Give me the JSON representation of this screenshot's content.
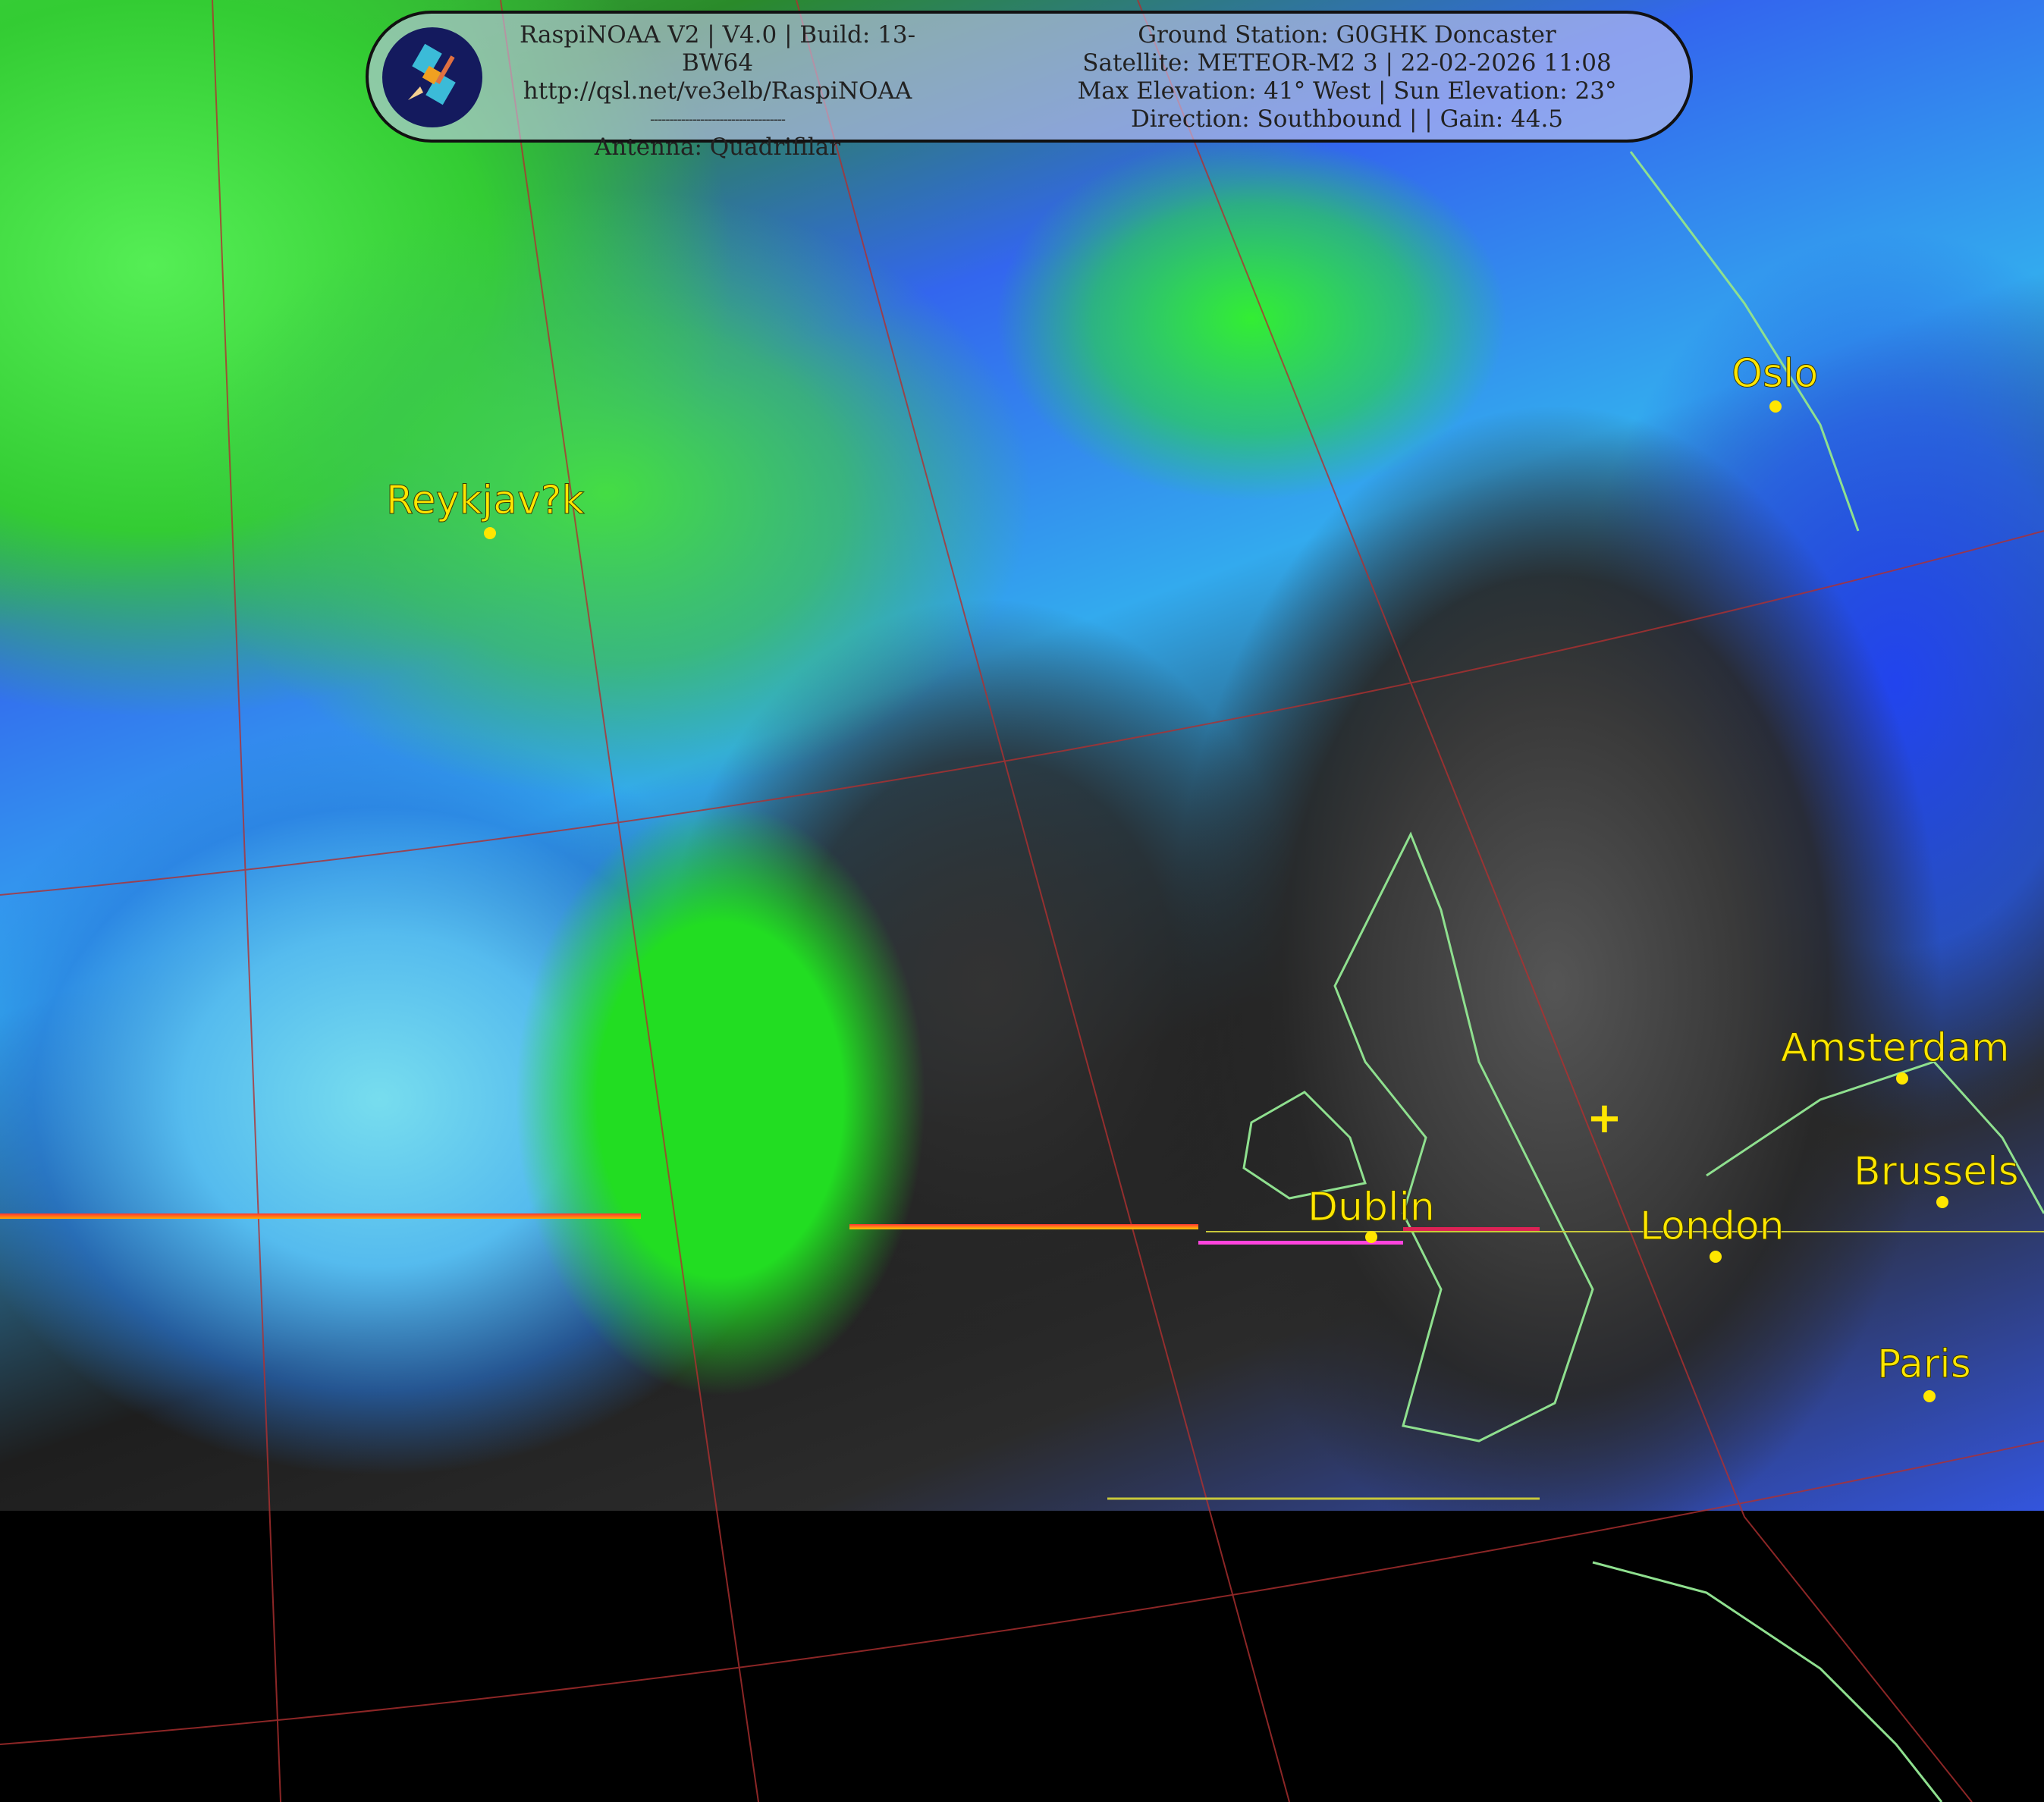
{
  "header": {
    "app_line": "RaspiNOAA V2 | V4.0 | Build: 13-BW64",
    "url": "http://qsl.net/ve3elb/RaspiNOAA",
    "separator": "-----------------------------------",
    "antenna": "Antenna: Quadrifilar",
    "ground_station": "Ground Station: G0GHK Doncaster",
    "satellite": "Satellite: METEOR-M2 3 | 22-02-2026 11:08",
    "elevation": "Max Elevation: 41° West | Sun Elevation: 23°",
    "direction_gain": "Direction: Southbound | | Gain: 44.5"
  },
  "logo_icon": "satellite-icon",
  "cities": [
    {
      "name": "Reykjav?k"
    },
    {
      "name": "Oslo"
    },
    {
      "name": "Amsterdam"
    },
    {
      "name": "Brussels"
    },
    {
      "name": "Dublin"
    },
    {
      "name": "London"
    },
    {
      "name": "Paris"
    }
  ],
  "marker_icon": "plus-icon",
  "colors": {
    "label": "#ffe600",
    "coastline": "#8fe08f",
    "grid": "#b03030"
  }
}
